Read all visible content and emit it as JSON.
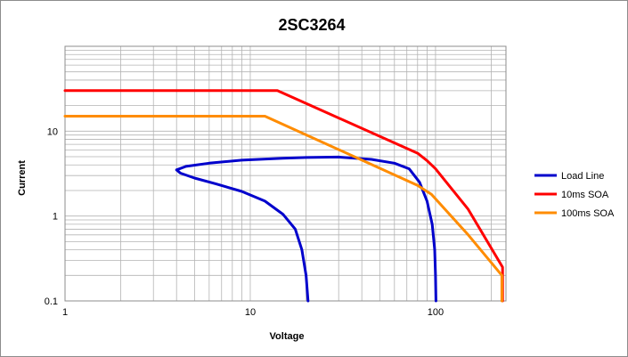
{
  "chart_data": {
    "type": "line",
    "title": "2SC3264",
    "xlabel": "Voltage",
    "ylabel": "Current",
    "x_scale": "log",
    "y_scale": "log",
    "xlim": [
      1,
      240
    ],
    "ylim": [
      0.1,
      100
    ],
    "x_ticks": [
      {
        "value": 1,
        "label": "1"
      },
      {
        "value": 10,
        "label": "10"
      },
      {
        "value": 100,
        "label": "100"
      }
    ],
    "y_ticks": [
      {
        "value": 0.1,
        "label": "0.1"
      },
      {
        "value": 1,
        "label": "1"
      },
      {
        "value": 10,
        "label": "10"
      }
    ],
    "grid": true,
    "legend_position": "right",
    "series": [
      {
        "name": "Load Line",
        "color": "#0000CC",
        "points": [
          [
            20.5,
            0.1
          ],
          [
            20,
            0.2
          ],
          [
            19,
            0.4
          ],
          [
            17.5,
            0.7
          ],
          [
            15,
            1.05
          ],
          [
            12,
            1.5
          ],
          [
            9,
            1.95
          ],
          [
            6.5,
            2.4
          ],
          [
            5,
            2.8
          ],
          [
            4.2,
            3.2
          ],
          [
            4.0,
            3.5
          ],
          [
            4.5,
            3.85
          ],
          [
            6,
            4.2
          ],
          [
            9,
            4.55
          ],
          [
            15,
            4.8
          ],
          [
            20,
            4.9
          ],
          [
            30,
            4.95
          ],
          [
            45,
            4.65
          ],
          [
            60,
            4.2
          ],
          [
            72,
            3.6
          ],
          [
            82,
            2.5
          ],
          [
            90,
            1.5
          ],
          [
            96,
            0.8
          ],
          [
            99,
            0.4
          ],
          [
            100,
            0.2
          ],
          [
            100.5,
            0.1
          ]
        ]
      },
      {
        "name": "10ms SOA",
        "color": "#FF0000",
        "points": [
          [
            1,
            30
          ],
          [
            14,
            30
          ],
          [
            80,
            5.5
          ],
          [
            90,
            4.5
          ],
          [
            100,
            3.6
          ],
          [
            150,
            1.2
          ],
          [
            230,
            0.25
          ],
          [
            230,
            0.1
          ]
        ]
      },
      {
        "name": "100ms SOA",
        "color": "#FF8C00",
        "points": [
          [
            1,
            15
          ],
          [
            12,
            15
          ],
          [
            80,
            2.3
          ],
          [
            95,
            1.8
          ],
          [
            150,
            0.6
          ],
          [
            228,
            0.2
          ],
          [
            228,
            0.1
          ]
        ]
      }
    ]
  }
}
